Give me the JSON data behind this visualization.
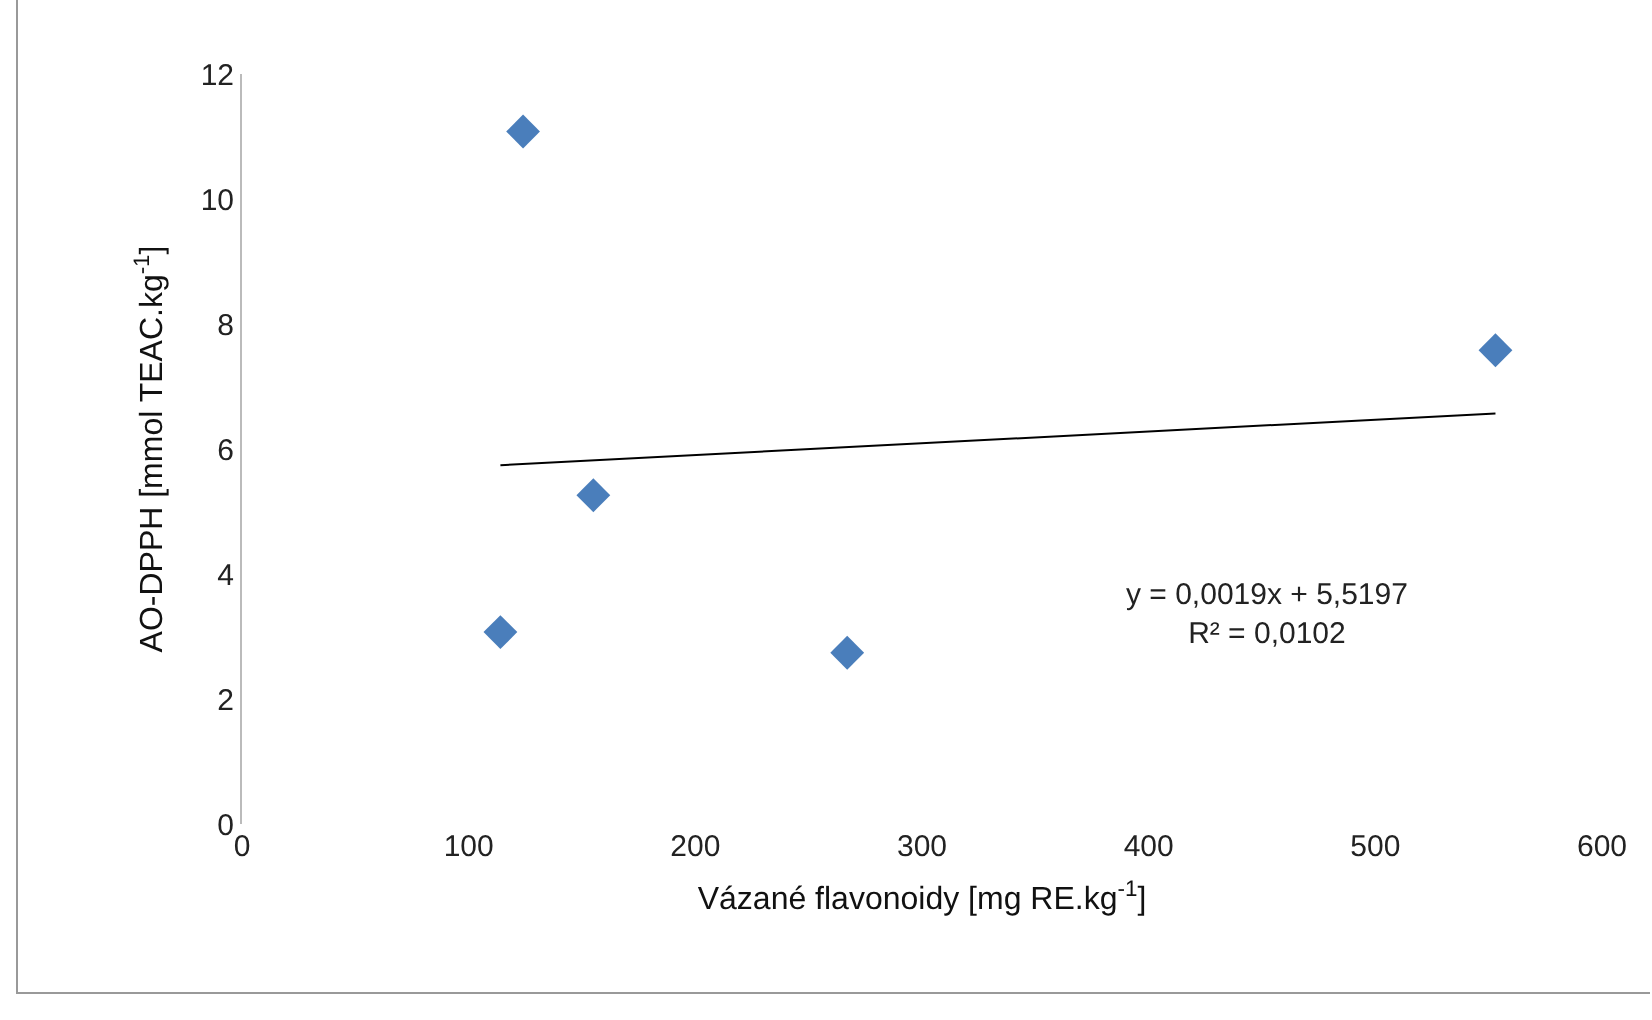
{
  "chart_data": {
    "type": "scatter",
    "xlabel": "Vázané flavonoidy [mg RE.kg$^{-1}$]",
    "ylabel": "AO-DPPH [mmol TEAC.kg$^{-1}$]",
    "x": [
      114,
      124,
      155,
      267,
      553
    ],
    "series": [
      {
        "color": "#4a7ebb",
        "values": [
          3.07,
          11.08,
          5.26,
          2.74,
          7.58
        ],
        "marker": "diamond"
      },
      {
        "type": "line",
        "color": "#000000",
        "x": [
          114,
          553
        ],
        "values": [
          5.74,
          6.57
        ],
        "marker": "none",
        "line_style": "solid"
      }
    ],
    "xlim": [
      0,
      600
    ],
    "xticks": [
      0,
      100,
      200,
      300,
      400,
      500,
      600
    ],
    "ylim": [
      0,
      12
    ],
    "yticks": [
      0,
      2,
      4,
      6,
      8,
      10,
      12
    ],
    "grid": false,
    "annotations": [
      "y = 0,0019x + 5,5197\nR² = 0,0102"
    ]
  }
}
